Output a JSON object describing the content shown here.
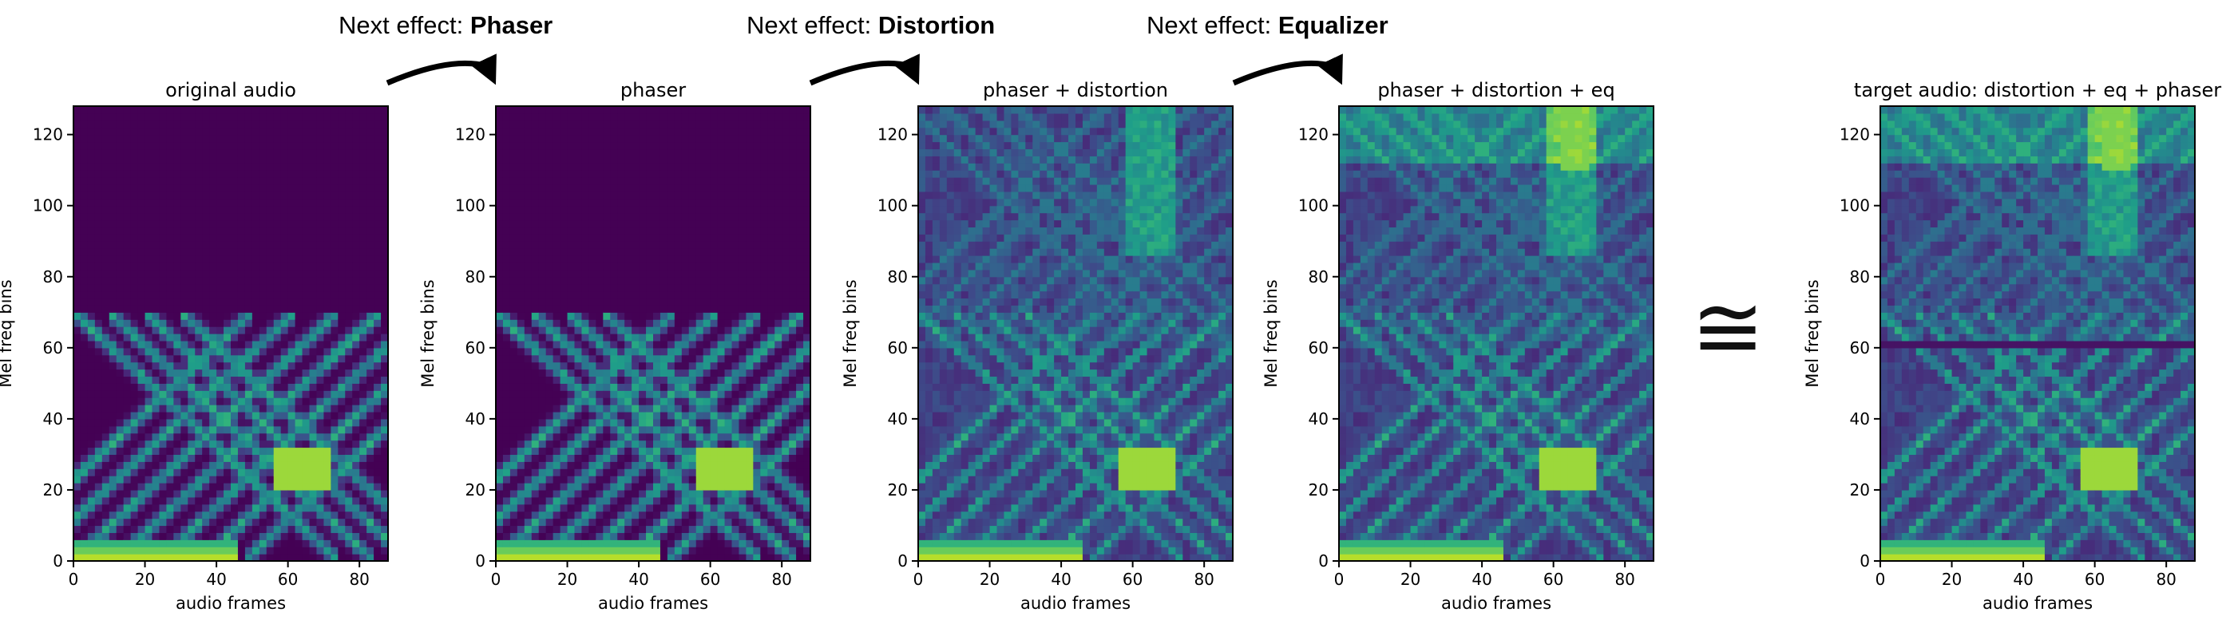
{
  "chart_data": [
    {
      "type": "heatmap",
      "title": "original audio",
      "xlabel": "audio frames",
      "ylabel": "Mel freq bins",
      "xlim": [
        0,
        88
      ],
      "ylim": [
        0,
        128
      ],
      "xticks": [
        0,
        20,
        40,
        60,
        80
      ],
      "yticks": [
        0,
        20,
        40,
        60,
        80,
        100,
        120
      ],
      "effects": [],
      "colormap": "viridis"
    },
    {
      "type": "heatmap",
      "title": "phaser",
      "xlabel": "audio frames",
      "ylabel": "Mel freq bins",
      "xlim": [
        0,
        88
      ],
      "ylim": [
        0,
        128
      ],
      "xticks": [
        0,
        20,
        40,
        60,
        80
      ],
      "yticks": [
        0,
        20,
        40,
        60,
        80,
        100,
        120
      ],
      "effects": [
        "phaser"
      ],
      "colormap": "viridis"
    },
    {
      "type": "heatmap",
      "title": "phaser + distortion",
      "xlabel": "audio frames",
      "ylabel": "Mel freq bins",
      "xlim": [
        0,
        88
      ],
      "ylim": [
        0,
        128
      ],
      "xticks": [
        0,
        20,
        40,
        60,
        80
      ],
      "yticks": [
        0,
        20,
        40,
        60,
        80,
        100,
        120
      ],
      "effects": [
        "phaser",
        "distortion"
      ],
      "colormap": "viridis"
    },
    {
      "type": "heatmap",
      "title": "phaser + distortion + eq",
      "xlabel": "audio frames",
      "ylabel": "Mel freq bins",
      "xlim": [
        0,
        88
      ],
      "ylim": [
        0,
        128
      ],
      "xticks": [
        0,
        20,
        40,
        60,
        80
      ],
      "yticks": [
        0,
        20,
        40,
        60,
        80,
        100,
        120
      ],
      "effects": [
        "phaser",
        "distortion",
        "eq"
      ],
      "colormap": "viridis"
    },
    {
      "type": "heatmap",
      "title": "target audio: distortion + eq + phaser",
      "xlabel": "audio frames",
      "ylabel": "Mel freq bins",
      "xlim": [
        0,
        88
      ],
      "ylim": [
        0,
        128
      ],
      "xticks": [
        0,
        20,
        40,
        60,
        80
      ],
      "yticks": [
        0,
        20,
        40,
        60,
        80,
        100,
        120
      ],
      "effects": [
        "distortion",
        "eq",
        "phaser"
      ],
      "colormap": "viridis"
    }
  ],
  "steps": [
    {
      "prefix": "Next effect: ",
      "effect": "Phaser"
    },
    {
      "prefix": "Next effect: ",
      "effect": "Distortion"
    },
    {
      "prefix": "Next effect: ",
      "effect": "Equalizer"
    }
  ],
  "approx_symbol": "≅"
}
